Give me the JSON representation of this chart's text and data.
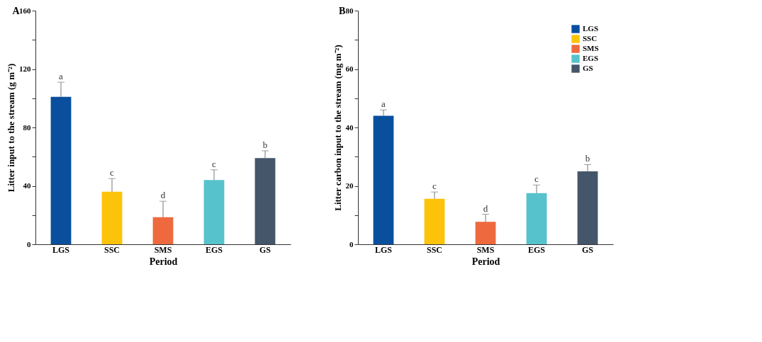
{
  "chart_data": [
    {
      "type": "bar",
      "title": "A",
      "xlabel": "Period",
      "ylabel": "Litter input to the stream (g m⁻²)",
      "categories": [
        "LGS",
        "SSC",
        "SMS",
        "EGS",
        "GS"
      ],
      "values": [
        101,
        36,
        18.5,
        44,
        59
      ],
      "errors": [
        10,
        9,
        11,
        7,
        5
      ],
      "colors": [
        "#0a4f9e",
        "#fdc20a",
        "#ee6a3e",
        "#56c2cc",
        "#45566b"
      ],
      "ylim": [
        0,
        160
      ],
      "yticks": [
        0,
        {
          "value": 20,
          "label": null
        },
        40,
        {
          "value": 60,
          "label": null
        },
        80,
        {
          "value": 100,
          "label": null
        },
        120,
        {
          "value": 140,
          "label": null
        },
        160
      ],
      "grid": false,
      "legend": false,
      "annotations": [
        {
          "text": "a",
          "x": "LGS",
          "y": 111
        },
        {
          "text": "c",
          "x": "SSC",
          "y": 45
        },
        {
          "text": "d",
          "x": "SMS",
          "y": 29.5
        },
        {
          "text": "c",
          "x": "EGS",
          "y": 51
        },
        {
          "text": "b",
          "x": "GS",
          "y": 64
        }
      ]
    },
    {
      "type": "bar",
      "title": "B",
      "xlabel": "Period",
      "ylabel": "Litter carbon input to the stream (mg m⁻²)",
      "categories": [
        "LGS",
        "SSC",
        "SMS",
        "EGS",
        "GS"
      ],
      "series": [
        {
          "name": "LGS",
          "color": "#0a4f9e",
          "values": [
            44,
            null,
            null,
            null,
            null
          ],
          "errors": [
            2,
            null,
            null,
            null,
            null
          ]
        },
        {
          "name": "SSC",
          "color": "#fdc20a",
          "values": [
            null,
            15.6,
            null,
            null,
            null
          ],
          "errors": [
            null,
            2.3,
            null,
            null,
            null
          ]
        },
        {
          "name": "SMS",
          "color": "#ee6a3e",
          "values": [
            null,
            null,
            7.7,
            null,
            null
          ],
          "errors": [
            null,
            null,
            2.6,
            null,
            null
          ]
        },
        {
          "name": "EGS",
          "color": "#56c2cc",
          "values": [
            null,
            null,
            null,
            17.5,
            null
          ],
          "errors": [
            null,
            null,
            null,
            2.8,
            null
          ]
        },
        {
          "name": "GS",
          "color": "#45566b",
          "values": [
            null,
            null,
            null,
            null,
            25
          ],
          "errors": [
            null,
            null,
            null,
            null,
            2.3
          ]
        }
      ],
      "ylim": [
        0,
        80
      ],
      "yticks": [
        0,
        {
          "value": 10,
          "label": null
        },
        20,
        {
          "value": 30,
          "label": null
        },
        40,
        {
          "value": 50,
          "label": null
        },
        60,
        {
          "value": 70,
          "label": null
        },
        80
      ],
      "grid": false,
      "legend": "top right",
      "annotations": [
        {
          "text": "a",
          "x": "LGS",
          "y": 46
        },
        {
          "text": "c",
          "x": "SSC",
          "y": 17.9
        },
        {
          "text": "d",
          "x": "SMS",
          "y": 10.3
        },
        {
          "text": "c",
          "x": "EGS",
          "y": 20.3
        },
        {
          "text": "b",
          "x": "GS",
          "y": 27.3
        }
      ]
    }
  ]
}
